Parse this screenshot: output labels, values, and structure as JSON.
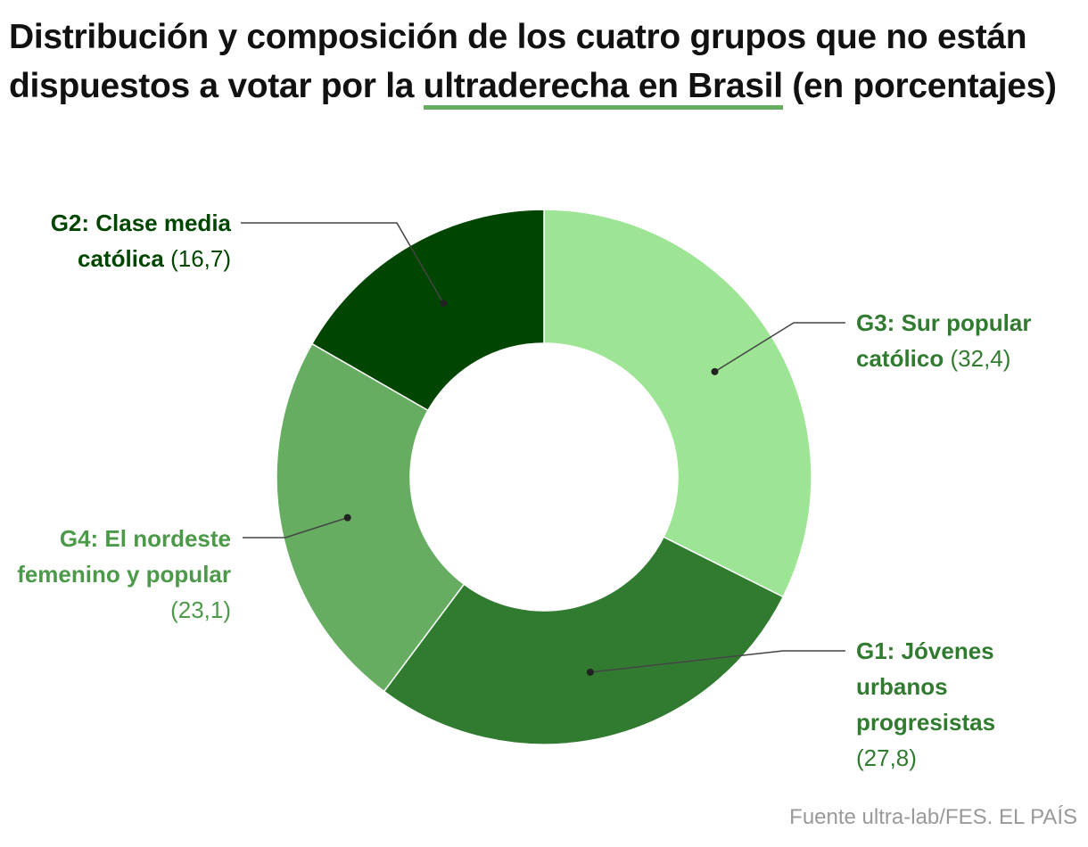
{
  "title": {
    "before": "Distribución y composición de los cuatro grupos que no están dispuestos a votar por la ",
    "highlight": "ultraderecha en Brasil",
    "after": " (en porcentajes)"
  },
  "source": "Fuente ultra-lab/FES. EL PAÍS",
  "colors": {
    "G3": "#9de595",
    "G1": "#317b31",
    "G4": "#66ad62",
    "G2": "#014600",
    "leader": "#444444",
    "underline": "#66ad62"
  },
  "chart_data": {
    "type": "pie",
    "variant": "donut",
    "start": "top",
    "direction": "clockwise",
    "unit": "%",
    "slices": [
      {
        "key": "G3",
        "label": "G3: Sur popular católico",
        "value": 32.4,
        "display": "(32,4)"
      },
      {
        "key": "G1",
        "label": "G1: Jóvenes urbanos progresistas",
        "value": 27.8,
        "display": "(27,8)"
      },
      {
        "key": "G4",
        "label": "G4: El nordeste femenino y popular",
        "value": 23.1,
        "display": "(23,1)"
      },
      {
        "key": "G2",
        "label": "G2: Clase media católica",
        "value": 16.7,
        "display": "(16,7)"
      }
    ]
  }
}
